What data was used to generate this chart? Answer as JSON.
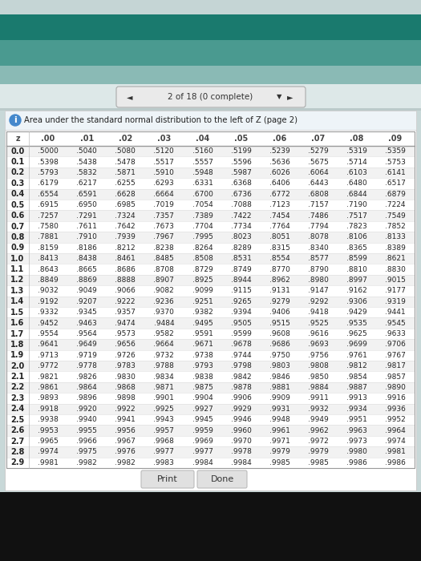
{
  "title": "Area under the standard normal distribution to the left of Z (page 2)",
  "nav_text": "2 of 18 (0 complete)",
  "col_headers": [
    "z",
    ".00",
    ".01",
    ".02",
    ".03",
    ".04",
    ".05",
    ".06",
    ".07",
    ".08",
    ".09"
  ],
  "rows": [
    [
      "0.0",
      ".5000",
      ".5040",
      ".5080",
      ".5120",
      ".5160",
      ".5199",
      ".5239",
      ".5279",
      ".5319",
      ".5359"
    ],
    [
      "0.1",
      ".5398",
      ".5438",
      ".5478",
      ".5517",
      ".5557",
      ".5596",
      ".5636",
      ".5675",
      ".5714",
      ".5753"
    ],
    [
      "0.2",
      ".5793",
      ".5832",
      ".5871",
      ".5910",
      ".5948",
      ".5987",
      ".6026",
      ".6064",
      ".6103",
      ".6141"
    ],
    [
      "0.3",
      ".6179",
      ".6217",
      ".6255",
      ".6293",
      ".6331",
      ".6368",
      ".6406",
      ".6443",
      ".6480",
      ".6517"
    ],
    [
      "0.4",
      ".6554",
      ".6591",
      ".6628",
      ".6664",
      ".6700",
      ".6736",
      ".6772",
      ".6808",
      ".6844",
      ".6879"
    ],
    [
      "0.5",
      ".6915",
      ".6950",
      ".6985",
      ".7019",
      ".7054",
      ".7088",
      ".7123",
      ".7157",
      ".7190",
      ".7224"
    ],
    [
      "0.6",
      ".7257",
      ".7291",
      ".7324",
      ".7357",
      ".7389",
      ".7422",
      ".7454",
      ".7486",
      ".7517",
      ".7549"
    ],
    [
      "0.7",
      ".7580",
      ".7611",
      ".7642",
      ".7673",
      ".7704",
      ".7734",
      ".7764",
      ".7794",
      ".7823",
      ".7852"
    ],
    [
      "0.8",
      ".7881",
      ".7910",
      ".7939",
      ".7967",
      ".7995",
      ".8023",
      ".8051",
      ".8078",
      ".8106",
      ".8133"
    ],
    [
      "0.9",
      ".8159",
      ".8186",
      ".8212",
      ".8238",
      ".8264",
      ".8289",
      ".8315",
      ".8340",
      ".8365",
      ".8389"
    ],
    [
      "1.0",
      ".8413",
      ".8438",
      ".8461",
      ".8485",
      ".8508",
      ".8531",
      ".8554",
      ".8577",
      ".8599",
      ".8621"
    ],
    [
      "1.1",
      ".8643",
      ".8665",
      ".8686",
      ".8708",
      ".8729",
      ".8749",
      ".8770",
      ".8790",
      ".8810",
      ".8830"
    ],
    [
      "1.2",
      ".8849",
      ".8869",
      ".8888",
      ".8907",
      ".8925",
      ".8944",
      ".8962",
      ".8980",
      ".8997",
      ".9015"
    ],
    [
      "1.3",
      ".9032",
      ".9049",
      ".9066",
      ".9082",
      ".9099",
      ".9115",
      ".9131",
      ".9147",
      ".9162",
      ".9177"
    ],
    [
      "1.4",
      ".9192",
      ".9207",
      ".9222",
      ".9236",
      ".9251",
      ".9265",
      ".9279",
      ".9292",
      ".9306",
      ".9319"
    ],
    [
      "1.5",
      ".9332",
      ".9345",
      ".9357",
      ".9370",
      ".9382",
      ".9394",
      ".9406",
      ".9418",
      ".9429",
      ".9441"
    ],
    [
      "1.6",
      ".9452",
      ".9463",
      ".9474",
      ".9484",
      ".9495",
      ".9505",
      ".9515",
      ".9525",
      ".9535",
      ".9545"
    ],
    [
      "1.7",
      ".9554",
      ".9564",
      ".9573",
      ".9582",
      ".9591",
      ".9599",
      ".9608",
      ".9616",
      ".9625",
      ".9633"
    ],
    [
      "1.8",
      ".9641",
      ".9649",
      ".9656",
      ".9664",
      ".9671",
      ".9678",
      ".9686",
      ".9693",
      ".9699",
      ".9706"
    ],
    [
      "1.9",
      ".9713",
      ".9719",
      ".9726",
      ".9732",
      ".9738",
      ".9744",
      ".9750",
      ".9756",
      ".9761",
      ".9767"
    ],
    [
      "2.0",
      ".9772",
      ".9778",
      ".9783",
      ".9788",
      ".9793",
      ".9798",
      ".9803",
      ".9808",
      ".9812",
      ".9817"
    ],
    [
      "2.1",
      ".9821",
      ".9826",
      ".9830",
      ".9834",
      ".9838",
      ".9842",
      ".9846",
      ".9850",
      ".9854",
      ".9857"
    ],
    [
      "2.2",
      ".9861",
      ".9864",
      ".9868",
      ".9871",
      ".9875",
      ".9878",
      ".9881",
      ".9884",
      ".9887",
      ".9890"
    ],
    [
      "2.3",
      ".9893",
      ".9896",
      ".9898",
      ".9901",
      ".9904",
      ".9906",
      ".9909",
      ".9911",
      ".9913",
      ".9916"
    ],
    [
      "2.4",
      ".9918",
      ".9920",
      ".9922",
      ".9925",
      ".9927",
      ".9929",
      ".9931",
      ".9932",
      ".9934",
      ".9936"
    ],
    [
      "2.5",
      ".9938",
      ".9940",
      ".9941",
      ".9943",
      ".9945",
      ".9946",
      ".9948",
      ".9949",
      ".9951",
      ".9952"
    ],
    [
      "2.6",
      ".9953",
      ".9955",
      ".9956",
      ".9957",
      ".9959",
      ".9960",
      ".9961",
      ".9962",
      ".9963",
      ".9964"
    ],
    [
      "2.7",
      ".9965",
      ".9966",
      ".9967",
      ".9968",
      ".9969",
      ".9970",
      ".9971",
      ".9972",
      ".9973",
      ".9974"
    ],
    [
      "2.8",
      ".9974",
      ".9975",
      ".9976",
      ".9977",
      ".9977",
      ".9978",
      ".9979",
      ".9979",
      ".9980",
      ".9981"
    ],
    [
      "2.9",
      ".9981",
      ".9982",
      ".9982",
      ".9983",
      ".9984",
      ".9984",
      ".9985",
      ".9985",
      ".9986",
      ".9986"
    ]
  ],
  "bg_color_top": "#c8d8d8",
  "teal_dark": "#1a7a6e",
  "teal_medium": "#4a9a90",
  "teal_light": "#8abab5",
  "nav_bg": "#dde8e8",
  "white": "#ffffff",
  "info_bg": "#eef4f8",
  "info_icon_color": "#4488cc",
  "black_bottom": "#111111",
  "content_border": "#cccccc",
  "row_alt": "#f2f2f2",
  "header_line": "#999999",
  "text_dark": "#222222",
  "text_header": "#444444",
  "button_bg": "#e0e0e0",
  "button_border": "#bbbbbb"
}
